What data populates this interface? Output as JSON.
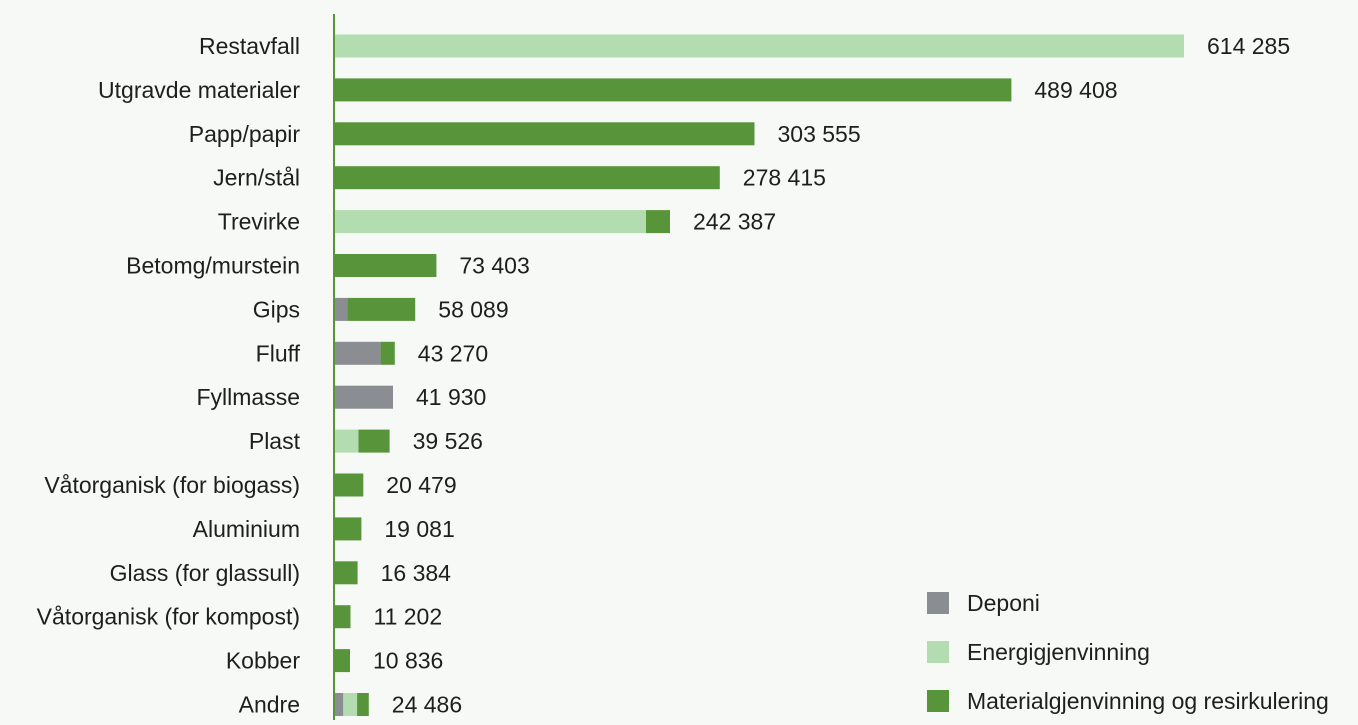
{
  "chart_data": {
    "type": "bar",
    "orientation": "horizontal",
    "stacked": true,
    "categories": [
      "Restavfall",
      "Utgravde materialer",
      "Papp/papir",
      "Jern/stål",
      "Trevirke",
      "Betomg/murstein",
      "Gips",
      "Fluff",
      "Fyllmasse",
      "Plast",
      "Våtorganisk (for biogass)",
      "Aluminium",
      "Glass (for glassull)",
      "Våtorganisk (for kompost)",
      "Kobber",
      "Andre"
    ],
    "totals_text": [
      "614 285",
      "489 408",
      "303 555",
      "278 415",
      "242 387",
      "73 403",
      "58 089",
      "43 270",
      "41 930",
      "39 526",
      "20 479",
      "19 081",
      "16 384",
      "11 202",
      "10 836",
      "24 486"
    ],
    "series": [
      {
        "name": "Deponi",
        "color": "#8a8d92",
        "values": [
          0,
          0,
          0,
          0,
          0,
          0,
          9000,
          33000,
          41930,
          0,
          0,
          0,
          0,
          0,
          0,
          6000
        ]
      },
      {
        "name": "Energigjenvinning",
        "color": "#b3dcb0",
        "values": [
          614285,
          0,
          0,
          0,
          225000,
          0,
          0,
          0,
          0,
          17000,
          0,
          0,
          0,
          0,
          0,
          10000
        ]
      },
      {
        "name": "Materialgjenvinning og resirkulering",
        "color": "#58953a",
        "values": [
          0,
          489408,
          303555,
          278415,
          17387,
          73403,
          49089,
          10270,
          0,
          22526,
          20479,
          19081,
          16384,
          11202,
          10836,
          8486
        ]
      }
    ],
    "xlim": [
      0,
      614285
    ],
    "grid": false,
    "legend_position": "bottom-right",
    "axis_color": "#58953a"
  }
}
